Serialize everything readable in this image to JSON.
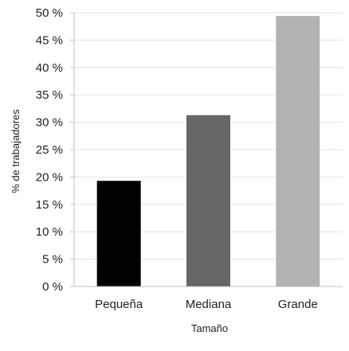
{
  "chart_data": {
    "type": "bar",
    "title": "",
    "xlabel": "Tamaño",
    "ylabel": "% de trabajadores",
    "categories": [
      "Pequeña",
      "Mediana",
      "Grande"
    ],
    "values": [
      19.3,
      31.3,
      49.4
    ],
    "colors": [
      "#000000",
      "#666666",
      "#b3b3b3"
    ],
    "ylim": [
      0,
      50
    ],
    "yticks": [
      0,
      5,
      10,
      15,
      20,
      25,
      30,
      35,
      40,
      45,
      50
    ],
    "ytick_labels": [
      "0 %",
      "5 %",
      "10 %",
      "15 %",
      "20 %",
      "25 %",
      "30 %",
      "35 %",
      "40 %",
      "45 %",
      "50 %"
    ],
    "grid": true,
    "grid_color": "#e6e6e6",
    "legend": "none"
  }
}
